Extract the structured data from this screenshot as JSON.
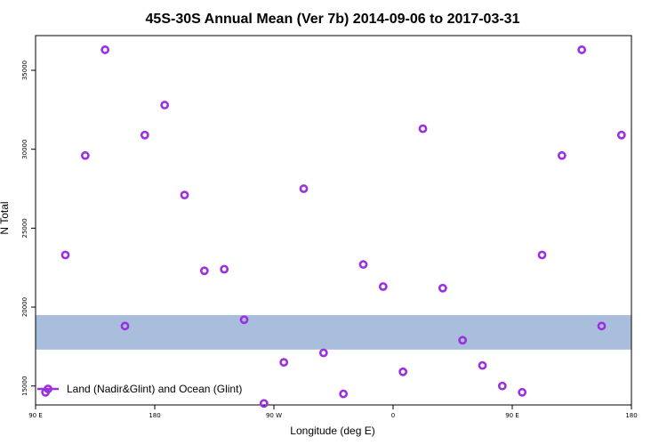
{
  "chart_data": {
    "type": "scatter",
    "title": "45S-30S Annual Mean (Ver 7b)   2014-09-06 to 2017-03-31",
    "xlabel": "Longitude (deg E)",
    "ylabel": "N Total",
    "xlim": [
      0,
      30
    ],
    "ylim": [
      13800,
      37200
    ],
    "x_ticks": [
      {
        "x": 0,
        "label": "90 E"
      },
      {
        "x": 6,
        "label": "180"
      },
      {
        "x": 12,
        "label": "90 W"
      },
      {
        "x": 18,
        "label": "0"
      },
      {
        "x": 24,
        "label": "90 E"
      },
      {
        "x": 30,
        "label": "180"
      }
    ],
    "y_ticks": [
      {
        "y": 15000,
        "label": "15000"
      },
      {
        "y": 20000,
        "label": "20000"
      },
      {
        "y": 25000,
        "label": "25000"
      },
      {
        "y": 30000,
        "label": "30000"
      },
      {
        "y": 35000,
        "label": "35000"
      }
    ],
    "map_band": {
      "y_top": 19500,
      "y_bottom": 17300,
      "ocean_color": "#a8bedc",
      "land_color": "#f9d776"
    },
    "series": [
      {
        "name": "Land (Nadir&Glint) and Ocean (Glint)",
        "color": "#9b30e0",
        "x": [
          0.5,
          1.5,
          2.5,
          3.5,
          4.5,
          5.5,
          6.5,
          7.5,
          8.5,
          9.5,
          10.5,
          11.5,
          12.5,
          13.5,
          14.5,
          15.5,
          16.5,
          17.5,
          18.5,
          19.5,
          20.5,
          21.5,
          22.5,
          23.5,
          24.5,
          25.5,
          26.5,
          27.5,
          28.5,
          29.5
        ],
        "y": [
          14600,
          23300,
          29600,
          36300,
          18800,
          30900,
          32800,
          27100,
          22300,
          22400,
          19200,
          13900,
          16500,
          27500,
          17100,
          14500,
          22700,
          21300,
          15900,
          31300,
          21200,
          17900,
          16300,
          15000,
          14600,
          23300,
          29600,
          36300,
          18800,
          30900
        ]
      }
    ],
    "legend": {
      "position": "bottom-left",
      "label": "Land (Nadir&Glint) and Ocean (Glint)"
    }
  }
}
